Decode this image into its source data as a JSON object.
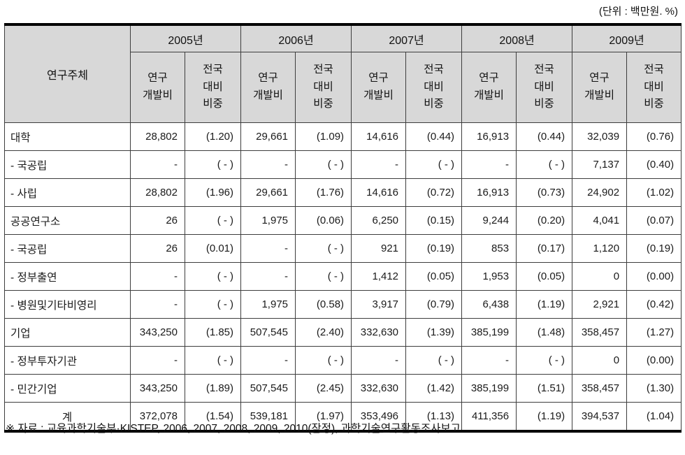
{
  "unit_note": "(단위 : 백만원. %)",
  "footnote": "※ 자료 : 교육과학기술부·KISTEP, 2006, 2007, 2008, 2009, 2010(잠정), 과학기술연구활동조사보고.",
  "table": {
    "corner_label": "연구주체",
    "years": [
      "2005년",
      "2006년",
      "2007년",
      "2008년",
      "2009년"
    ],
    "sub_headers": {
      "value": "연구\n개발비",
      "share": "전국\n대비\n비중"
    },
    "rows": [
      {
        "label": "대학",
        "align": "left",
        "cells": [
          [
            "28,802",
            "(1.20)"
          ],
          [
            "29,661",
            "(1.09)"
          ],
          [
            "14,616",
            "(0.44)"
          ],
          [
            "16,913",
            "(0.44)"
          ],
          [
            "32,039",
            "(0.76)"
          ]
        ]
      },
      {
        "label": "- 국공립",
        "align": "left",
        "cells": [
          [
            "-",
            "( - )"
          ],
          [
            "-",
            "( - )"
          ],
          [
            "-",
            "( - )"
          ],
          [
            "-",
            "( - )"
          ],
          [
            "7,137",
            "(0.40)"
          ]
        ]
      },
      {
        "label": "- 사립",
        "align": "left",
        "cells": [
          [
            "28,802",
            "(1.96)"
          ],
          [
            "29,661",
            "(1.76)"
          ],
          [
            "14,616",
            "(0.72)"
          ],
          [
            "16,913",
            "(0.73)"
          ],
          [
            "24,902",
            "(1.02)"
          ]
        ]
      },
      {
        "label": "공공연구소",
        "align": "left",
        "cells": [
          [
            "26",
            "( - )"
          ],
          [
            "1,975",
            "(0.06)"
          ],
          [
            "6,250",
            "(0.15)"
          ],
          [
            "9,244",
            "(0.20)"
          ],
          [
            "4,041",
            "(0.07)"
          ]
        ]
      },
      {
        "label": "- 국공립",
        "align": "left",
        "cells": [
          [
            "26",
            "(0.01)"
          ],
          [
            "-",
            "( - )"
          ],
          [
            "921",
            "(0.19)"
          ],
          [
            "853",
            "(0.17)"
          ],
          [
            "1,120",
            "(0.19)"
          ]
        ]
      },
      {
        "label": "- 정부출연",
        "align": "left",
        "cells": [
          [
            "-",
            "( - )"
          ],
          [
            "-",
            "( - )"
          ],
          [
            "1,412",
            "(0.05)"
          ],
          [
            "1,953",
            "(0.05)"
          ],
          [
            "0",
            "(0.00)"
          ]
        ]
      },
      {
        "label": "- 병원및기타비영리",
        "align": "left",
        "cells": [
          [
            "-",
            "( - )"
          ],
          [
            "1,975",
            "(0.58)"
          ],
          [
            "3,917",
            "(0.79)"
          ],
          [
            "6,438",
            "(1.19)"
          ],
          [
            "2,921",
            "(0.42)"
          ]
        ]
      },
      {
        "label": "기업",
        "align": "left",
        "cells": [
          [
            "343,250",
            "(1.85)"
          ],
          [
            "507,545",
            "(2.40)"
          ],
          [
            "332,630",
            "(1.39)"
          ],
          [
            "385,199",
            "(1.48)"
          ],
          [
            "358,457",
            "(1.27)"
          ]
        ]
      },
      {
        "label": "- 정부투자기관",
        "align": "left",
        "cells": [
          [
            "-",
            "( - )"
          ],
          [
            "-",
            "( - )"
          ],
          [
            "-",
            "( - )"
          ],
          [
            "-",
            "( - )"
          ],
          [
            "0",
            "(0.00)"
          ]
        ]
      },
      {
        "label": "- 민간기업",
        "align": "left",
        "cells": [
          [
            "343,250",
            "(1.89)"
          ],
          [
            "507,545",
            "(2.45)"
          ],
          [
            "332,630",
            "(1.42)"
          ],
          [
            "385,199",
            "(1.51)"
          ],
          [
            "358,457",
            "(1.30)"
          ]
        ]
      },
      {
        "label": "계",
        "align": "center",
        "cells": [
          [
            "372,078",
            "(1.54)"
          ],
          [
            "539,181",
            "(1.97)"
          ],
          [
            "353,496",
            "(1.13)"
          ],
          [
            "411,356",
            "(1.19)"
          ],
          [
            "394,537",
            "(1.04)"
          ]
        ]
      }
    ]
  }
}
